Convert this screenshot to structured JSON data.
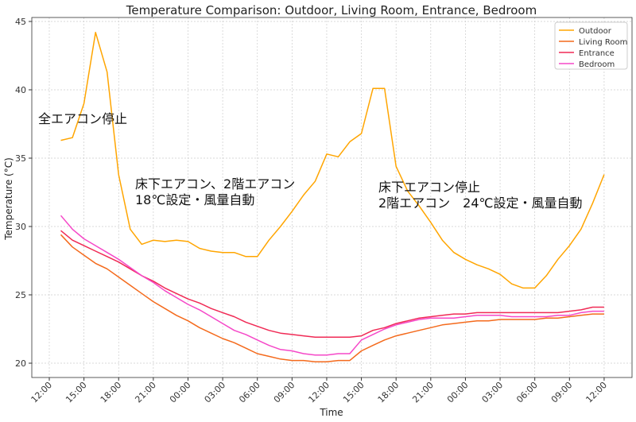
{
  "chart_data": {
    "type": "line",
    "title": "Temperature Comparison: Outdoor, Living Room, Entrance, Bedroom",
    "xlabel": "Time",
    "ylabel": "Temperature (°C)",
    "x_ticks": [
      "12:00",
      "15:00",
      "18:00",
      "21:00",
      "00:00",
      "03:00",
      "06:00",
      "09:00",
      "12:00",
      "15:00",
      "18:00",
      "21:00",
      "00:00",
      "03:00",
      "06:00",
      "09:00",
      "12:00"
    ],
    "x": [
      "13:00",
      "14:00",
      "15:00",
      "16:00",
      "17:00",
      "18:00",
      "19:00",
      "20:00",
      "21:00",
      "22:00",
      "23:00",
      "00:00",
      "01:00",
      "02:00",
      "03:00",
      "04:00",
      "05:00",
      "06:00",
      "07:00",
      "08:00",
      "09:00",
      "10:00",
      "11:00",
      "12:00",
      "13:00",
      "14:00",
      "15:00",
      "16:00",
      "17:00",
      "18:00",
      "19:00",
      "20:00",
      "21:00",
      "22:00",
      "23:00",
      "00:00",
      "01:00",
      "02:00",
      "03:00",
      "04:00",
      "05:00",
      "06:00",
      "07:00",
      "08:00",
      "09:00",
      "10:00",
      "11:00",
      "12:00"
    ],
    "y_ticks": [
      20,
      25,
      30,
      35,
      40,
      45
    ],
    "ylim": [
      19,
      45.5
    ],
    "grid": true,
    "legend_placement": "top-right",
    "series": [
      {
        "name": "Outdoor",
        "color": "#ffa500",
        "values": [
          36.3,
          36.5,
          39.0,
          44.2,
          41.3,
          33.8,
          29.8,
          28.7,
          29.0,
          28.9,
          29.0,
          28.9,
          28.4,
          28.2,
          28.1,
          28.1,
          27.8,
          27.8,
          29.0,
          30.0,
          31.1,
          32.3,
          33.3,
          35.3,
          35.1,
          36.2,
          36.8,
          40.1,
          40.1,
          34.4,
          32.6,
          31.5,
          30.3,
          29.0,
          28.1,
          27.6,
          27.2,
          26.9,
          26.5,
          25.8,
          25.5,
          25.5,
          26.4,
          27.6,
          28.6,
          29.8,
          31.7,
          33.8
        ]
      },
      {
        "name": "Living Room",
        "color": "#f46a1c",
        "values": [
          29.4,
          28.5,
          27.9,
          27.3,
          26.9,
          26.3,
          25.7,
          25.1,
          24.5,
          24.0,
          23.5,
          23.1,
          22.6,
          22.2,
          21.8,
          21.5,
          21.1,
          20.7,
          20.5,
          20.3,
          20.2,
          20.2,
          20.1,
          20.1,
          20.2,
          20.2,
          20.9,
          21.3,
          21.7,
          22.0,
          22.2,
          22.4,
          22.6,
          22.8,
          22.9,
          23.0,
          23.1,
          23.1,
          23.2,
          23.2,
          23.2,
          23.2,
          23.3,
          23.3,
          23.4,
          23.5,
          23.6,
          23.6
        ]
      },
      {
        "name": "Entrance",
        "color": "#f02a55",
        "values": [
          29.7,
          29.0,
          28.6,
          28.2,
          27.8,
          27.4,
          26.9,
          26.4,
          26.0,
          25.5,
          25.1,
          24.7,
          24.4,
          24.0,
          23.7,
          23.4,
          23.0,
          22.7,
          22.4,
          22.2,
          22.1,
          22.0,
          21.9,
          21.9,
          21.9,
          21.9,
          22.0,
          22.4,
          22.6,
          22.9,
          23.1,
          23.3,
          23.4,
          23.5,
          23.6,
          23.6,
          23.7,
          23.7,
          23.7,
          23.7,
          23.7,
          23.7,
          23.7,
          23.7,
          23.8,
          23.9,
          24.1,
          24.1
        ]
      },
      {
        "name": "Bedroom",
        "color": "#f548c8",
        "values": [
          30.8,
          29.8,
          29.1,
          28.6,
          28.1,
          27.6,
          27.0,
          26.4,
          25.9,
          25.3,
          24.8,
          24.3,
          23.9,
          23.4,
          22.9,
          22.4,
          22.1,
          21.7,
          21.3,
          21.0,
          20.9,
          20.7,
          20.6,
          20.6,
          20.7,
          20.7,
          21.7,
          22.1,
          22.5,
          22.8,
          23.0,
          23.2,
          23.3,
          23.3,
          23.3,
          23.4,
          23.5,
          23.5,
          23.5,
          23.4,
          23.4,
          23.4,
          23.4,
          23.5,
          23.5,
          23.7,
          23.8,
          23.8
        ]
      }
    ],
    "annotations": [
      {
        "lines": [
          "全エアコン停止"
        ]
      },
      {
        "lines": [
          "床下エアコン、2階エアコン",
          "18℃設定・風量自動"
        ]
      },
      {
        "lines": [
          "床下エアコン停止",
          "2階エアコン　24℃設定・風量自動"
        ]
      }
    ]
  }
}
